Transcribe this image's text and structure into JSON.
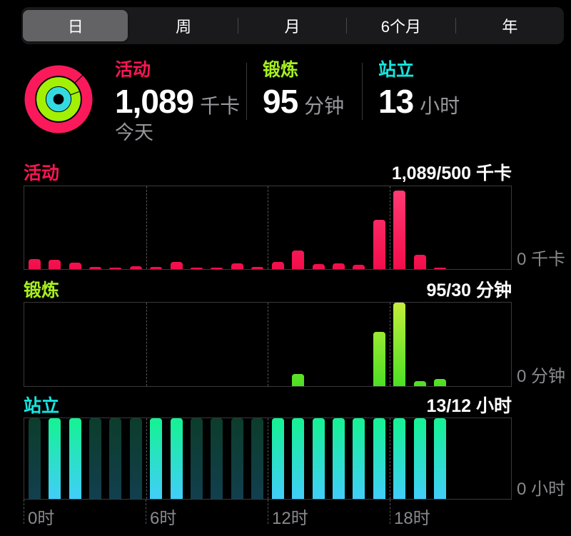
{
  "app": {
    "background": "#000000",
    "accent_gray": "#98989e"
  },
  "segmented_control": {
    "segments": [
      {
        "label": "日",
        "selected": true
      },
      {
        "label": "周",
        "selected": false
      },
      {
        "label": "月",
        "selected": false
      },
      {
        "label": "6个月",
        "selected": false
      },
      {
        "label": "年",
        "selected": false
      }
    ],
    "selected_bg": "#636366",
    "control_bg": "#1a1a1c"
  },
  "summary": {
    "rings_icon": {
      "move_color": "#fa1a5c",
      "exercise_color": "#a2f005",
      "stand_color": "#33dbe1"
    },
    "stats": [
      {
        "name": "活动",
        "value": "1,089",
        "unit": "千卡",
        "color": "#fb1553"
      },
      {
        "name": "锻炼",
        "value": "95",
        "unit": "分钟",
        "color": "#a6ef1e"
      },
      {
        "name": "站立",
        "value": "13",
        "unit": "小时",
        "color": "#15e6e0"
      }
    ],
    "date_label": "今天"
  },
  "chart_data": [
    {
      "type": "bar",
      "id": "move",
      "title": "活动",
      "title_color": "#fb1553",
      "header_value": "1,089/500 千卡",
      "zero_label": "0 千卡",
      "x": [
        0,
        1,
        2,
        3,
        4,
        5,
        6,
        7,
        8,
        9,
        10,
        11,
        12,
        13,
        14,
        15,
        16,
        17,
        18,
        19,
        20,
        21,
        22,
        23
      ],
      "x_tick_labels": [
        "0时",
        "6时",
        "12时",
        "18时"
      ],
      "values": [
        46,
        43,
        29,
        10,
        7,
        13,
        10,
        33,
        7,
        3,
        26,
        10,
        33,
        85,
        23,
        26,
        20,
        229,
        366,
        65,
        7,
        0,
        0,
        0
      ],
      "ylabel": "千卡",
      "ymax": 385,
      "bar_gradient": [
        "#f20d4b",
        "#ff3c74"
      ],
      "grid": "dashed-vertical-every-6h"
    },
    {
      "type": "bar",
      "id": "exercise",
      "title": "锻炼",
      "title_color": "#a6ef1e",
      "header_value": "95/30 分钟",
      "zero_label": "0 分钟",
      "x": [
        0,
        1,
        2,
        3,
        4,
        5,
        6,
        7,
        8,
        9,
        10,
        11,
        12,
        13,
        14,
        15,
        16,
        17,
        18,
        19,
        20,
        21,
        22,
        23
      ],
      "x_tick_labels": [
        "0时",
        "6时",
        "12时",
        "18时"
      ],
      "values": [
        0,
        0,
        0,
        0,
        0,
        0,
        0,
        0,
        0,
        0,
        0,
        0,
        0,
        7,
        0,
        0,
        0,
        32,
        49,
        3,
        4,
        0,
        0,
        0
      ],
      "ylabel": "分钟",
      "ymax": 49,
      "bar_gradient": [
        "#4cdf24",
        "#c3ee3b"
      ],
      "grid": "dashed-vertical-every-6h"
    },
    {
      "type": "bar",
      "id": "stand",
      "title": "站立",
      "title_color": "#15e6e0",
      "header_value": "13/12 小时",
      "zero_label": "0 小时",
      "x": [
        0,
        1,
        2,
        3,
        4,
        5,
        6,
        7,
        8,
        9,
        10,
        11,
        12,
        13,
        14,
        15,
        16,
        17,
        18,
        19,
        20,
        21,
        22,
        23
      ],
      "x_tick_labels": [
        "0时",
        "6时",
        "12时",
        "18时"
      ],
      "stand_states": [
        "dim",
        "bright",
        "bright",
        "dim",
        "dim",
        "dim",
        "bright",
        "bright",
        "dim",
        "dim",
        "dim",
        "dim",
        "bright",
        "bright",
        "bright",
        "bright",
        "bright",
        "bright",
        "bright",
        "bright",
        "bright",
        "none",
        "none",
        "none"
      ],
      "values": [
        0,
        1,
        1,
        0,
        0,
        0,
        1,
        1,
        0,
        0,
        0,
        0,
        1,
        1,
        1,
        1,
        1,
        1,
        1,
        1,
        1,
        0,
        0,
        0
      ],
      "ylabel": "小时",
      "ymax": 1,
      "bar_gradient": [
        "#41cefa",
        "#14f392"
      ],
      "dim_gradient": [
        "#123f4e",
        "#0c3d2b"
      ],
      "grid": "dashed-vertical-every-6h"
    }
  ],
  "x_axis": {
    "labels": [
      {
        "text": "0时",
        "hour": 0
      },
      {
        "text": "6时",
        "hour": 6
      },
      {
        "text": "12时",
        "hour": 12
      },
      {
        "text": "18时",
        "hour": 18
      }
    ]
  }
}
